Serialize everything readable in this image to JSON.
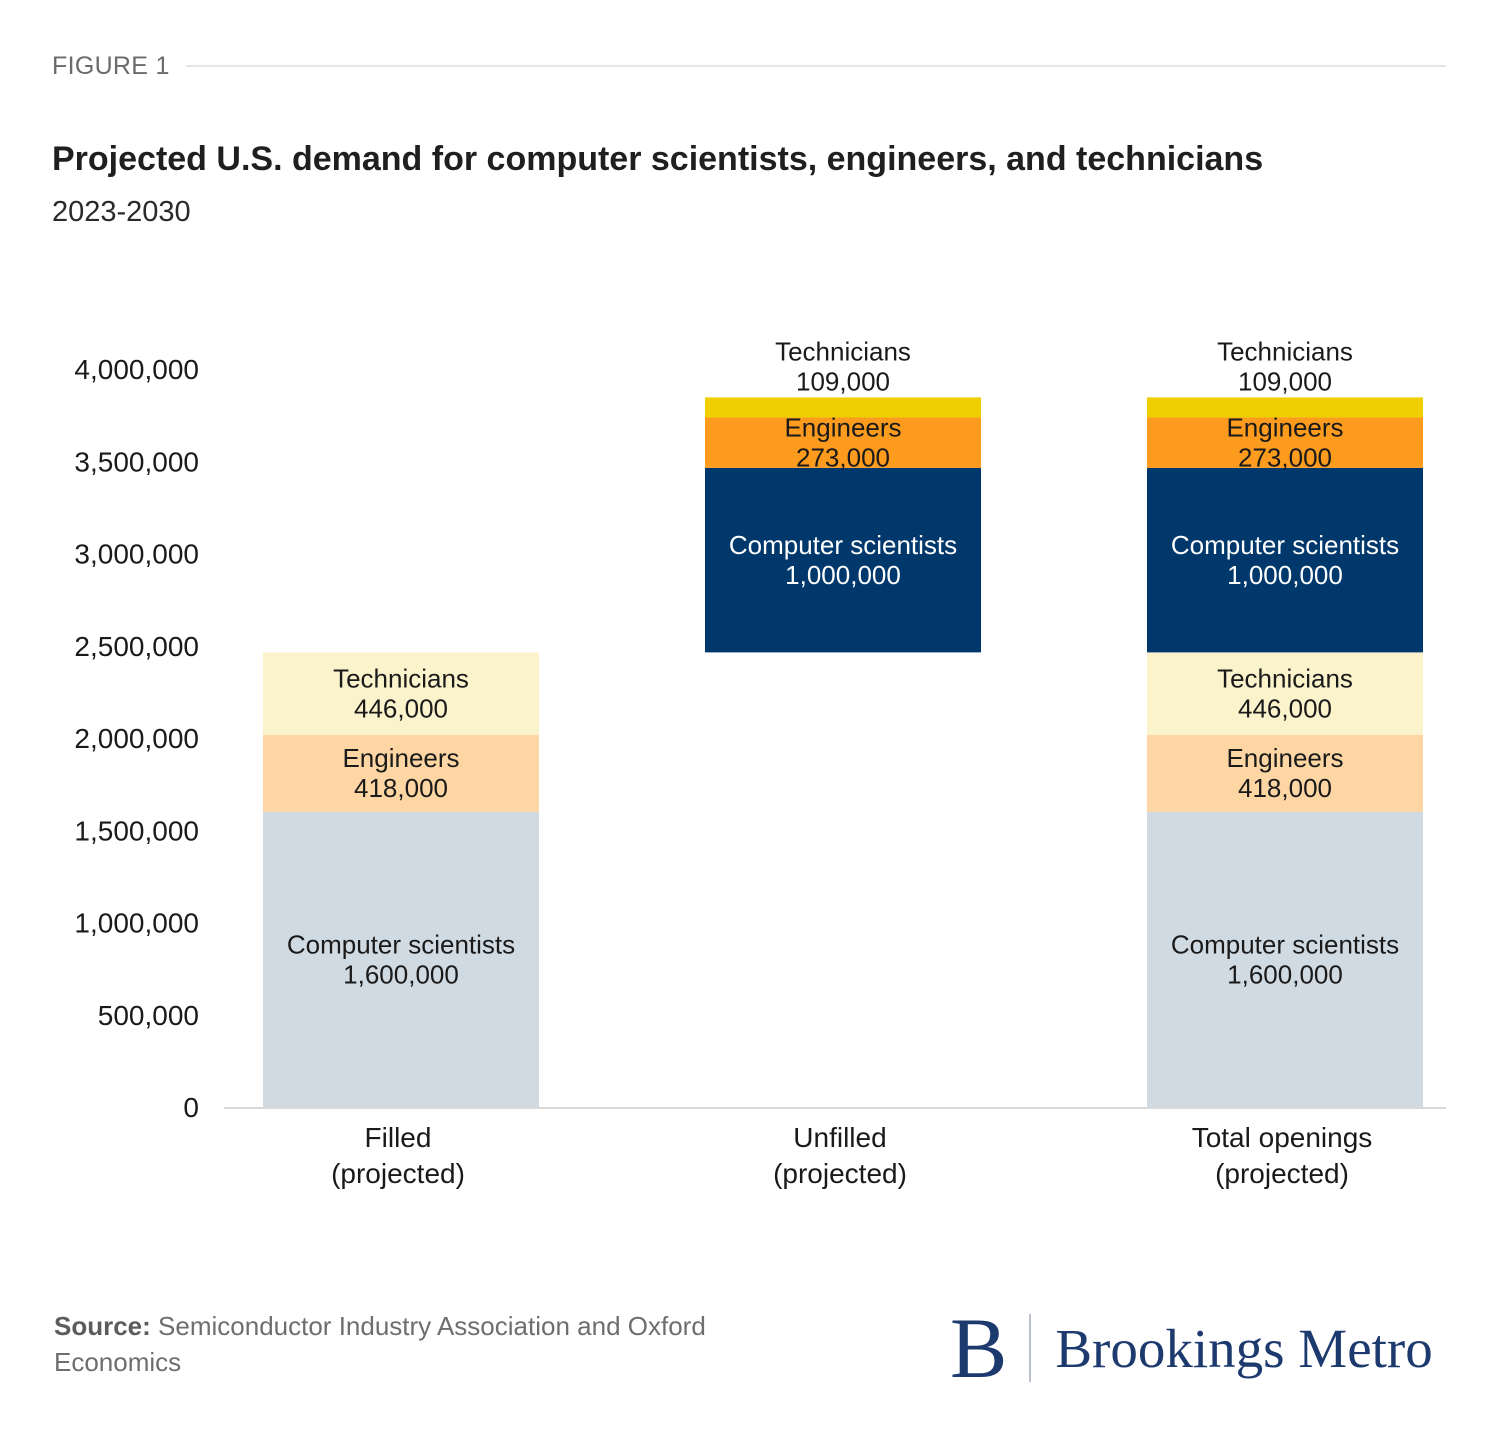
{
  "header": {
    "figure_label": "FIGURE 1",
    "title": "Projected U.S. demand for computer scientists, engineers, and technicians",
    "subtitle": "2023-2030"
  },
  "footer": {
    "source_label": "Source:",
    "source_text": "Semiconductor Industry Association and Oxford Economics",
    "logo_mark": "B",
    "logo_text": "Brookings Metro"
  },
  "chart_data": {
    "type": "bar",
    "stacked": true,
    "title": "Projected U.S. demand for computer scientists, engineers, and technicians",
    "subtitle": "2023-2030",
    "xlabel": "",
    "ylabel": "",
    "ylim": [
      0,
      4000000
    ],
    "yticks": [
      0,
      500000,
      1000000,
      1500000,
      2000000,
      2500000,
      3000000,
      3500000,
      4000000
    ],
    "ytick_labels": [
      "0",
      "500,000",
      "1,000,000",
      "1,500,000",
      "2,000,000",
      "2,500,000",
      "3,000,000",
      "3,500,000",
      "4,000,000"
    ],
    "grid": false,
    "legend": "none (inline segment labels)",
    "categories": [
      [
        "Filled",
        "(projected)"
      ],
      [
        "Unfilled",
        "(projected)"
      ],
      [
        "Total openings",
        "(projected)"
      ]
    ],
    "bars": [
      {
        "category": "Filled (projected)",
        "segments": [
          {
            "name": "Computer scientists",
            "value": 1600000,
            "label": "1,600,000",
            "color": "#d0dae2",
            "text_color": "#1a1a1a"
          },
          {
            "name": "Engineers",
            "value": 418000,
            "label": "418,000",
            "color": "#fed6a4",
            "text_color": "#1a1a1a"
          },
          {
            "name": "Technicians",
            "value": 446000,
            "label": "446,000",
            "color": "#fbf3cc",
            "text_color": "#1a1a1a"
          }
        ]
      },
      {
        "category": "Unfilled (projected)",
        "base": 2464000,
        "segments": [
          {
            "name": "Computer scientists",
            "value": 1000000,
            "label": "1,000,000",
            "color": "#00386c",
            "text_color": "#ffffff"
          },
          {
            "name": "Engineers",
            "value": 273000,
            "label": "273,000",
            "color": "#fd9b1e",
            "text_color": "#1a1a1a"
          },
          {
            "name": "Technicians",
            "value": 109000,
            "label": "109,000",
            "color": "#f0cf00",
            "text_color": "#1a1a1a",
            "label_above": true
          }
        ]
      },
      {
        "category": "Total openings (projected)",
        "segments": [
          {
            "name": "Computer scientists",
            "value": 1600000,
            "label": "1,600,000",
            "color": "#d0dae2",
            "text_color": "#1a1a1a"
          },
          {
            "name": "Engineers",
            "value": 418000,
            "label": "418,000",
            "color": "#fed6a4",
            "text_color": "#1a1a1a"
          },
          {
            "name": "Technicians",
            "value": 446000,
            "label": "446,000",
            "color": "#fbf3cc",
            "text_color": "#1a1a1a"
          },
          {
            "name": "Computer scientists",
            "value": 1000000,
            "label": "1,000,000",
            "color": "#00386c",
            "text_color": "#ffffff"
          },
          {
            "name": "Engineers",
            "value": 273000,
            "label": "273,000",
            "color": "#fd9b1e",
            "text_color": "#1a1a1a"
          },
          {
            "name": "Technicians",
            "value": 109000,
            "label": "109,000",
            "color": "#f0cf00",
            "text_color": "#1a1a1a",
            "label_above": true
          }
        ]
      }
    ]
  }
}
